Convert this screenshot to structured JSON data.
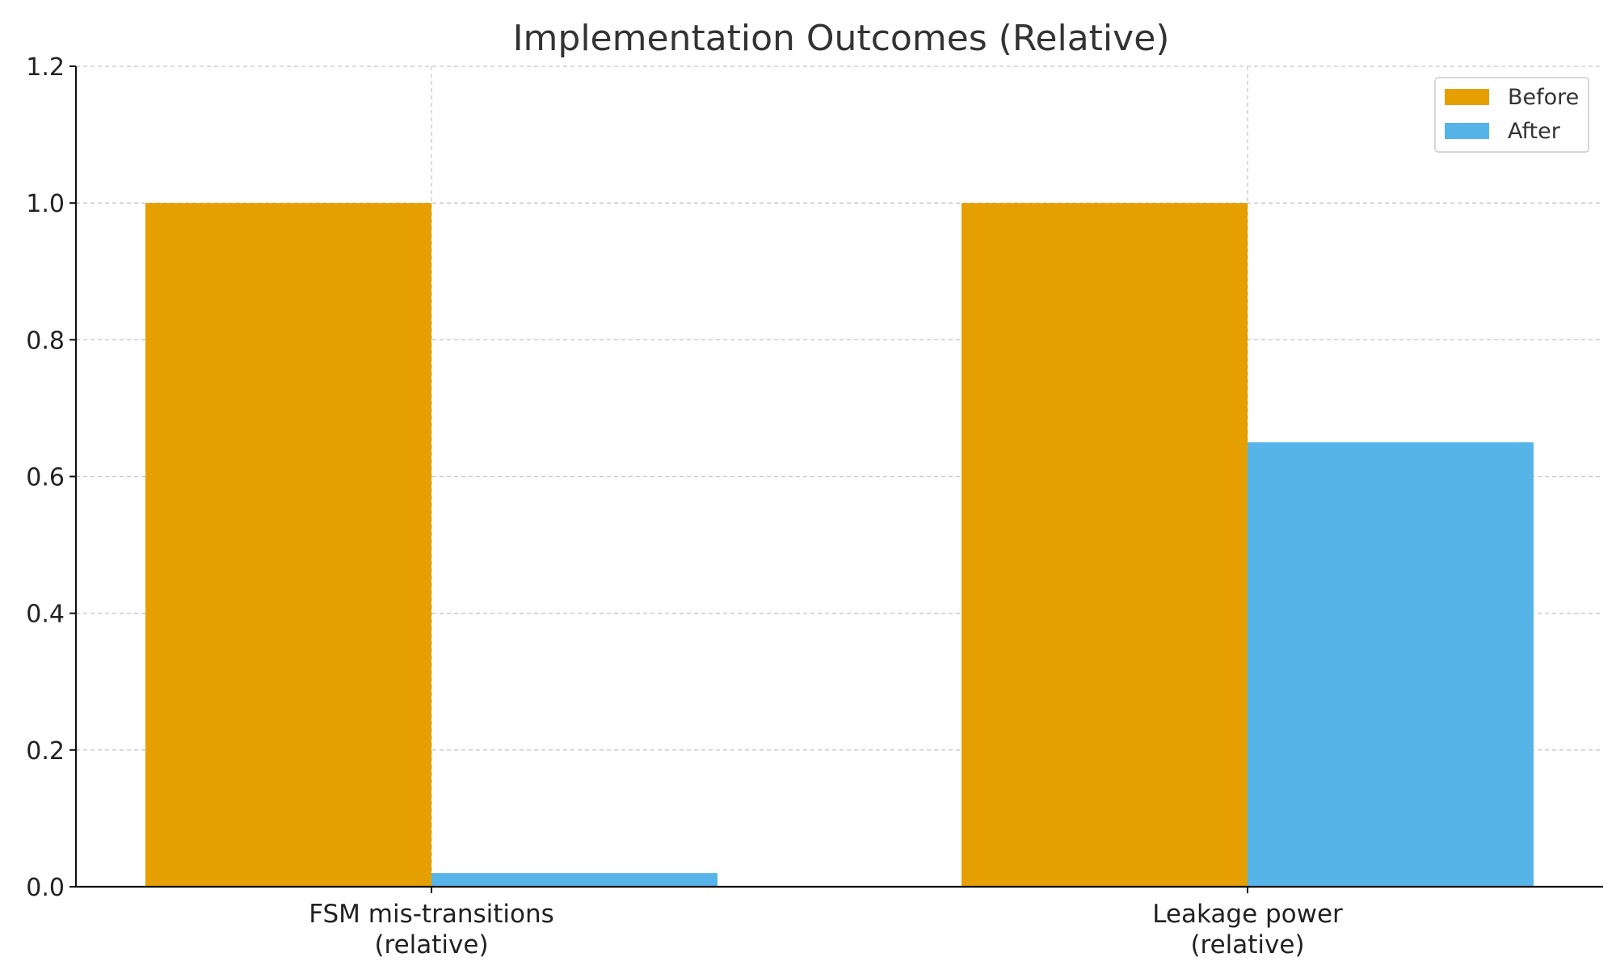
{
  "chart_data": {
    "type": "bar",
    "title": "Implementation Outcomes (Relative)",
    "categories": [
      [
        "FSM mis-transitions",
        "(relative)"
      ],
      [
        "Leakage power",
        "(relative)"
      ]
    ],
    "series": [
      {
        "name": "Before",
        "values": [
          1.0,
          1.0
        ],
        "color": "#E69F00"
      },
      {
        "name": "After",
        "values": [
          0.02,
          0.65
        ],
        "color": "#56B4E9"
      }
    ],
    "xlabel": "",
    "ylabel": "",
    "ylim": [
      0,
      1.2
    ],
    "yticks": [
      "0.0",
      "0.2",
      "0.4",
      "0.6",
      "0.8",
      "1.0",
      "1.2"
    ],
    "grid": true,
    "legend": "top-right"
  }
}
